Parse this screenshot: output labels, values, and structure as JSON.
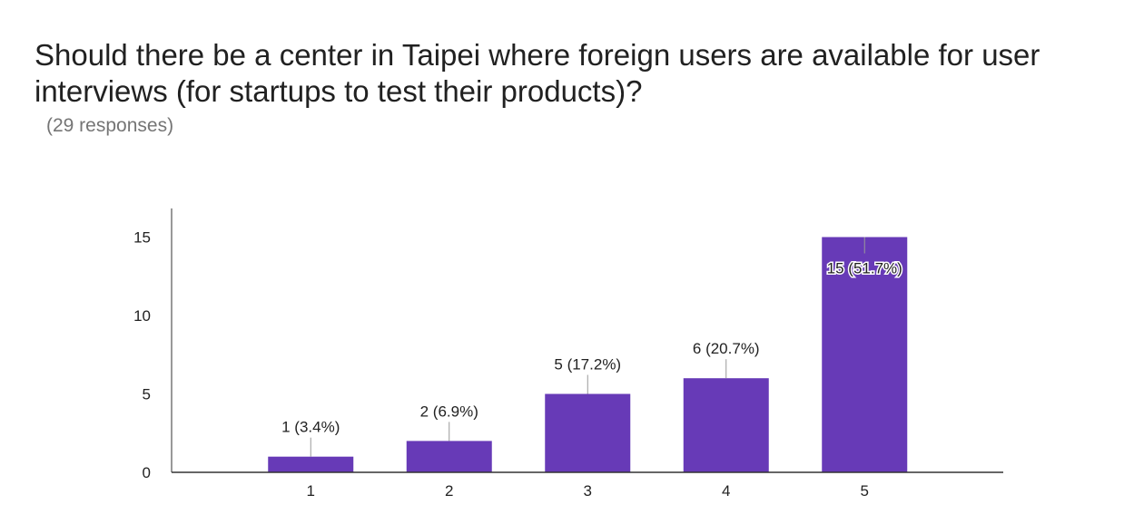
{
  "title": "Should there be a center in Taipei where foreign users are available for user interviews (for startups to test their products)?",
  "subtitle": "(29 responses)",
  "colors": {
    "bar": "#673ab7",
    "axis": "#333333",
    "leader": "#999999",
    "label_text": "#222222"
  },
  "chart_data": {
    "type": "bar",
    "categories": [
      "1",
      "2",
      "3",
      "4",
      "5"
    ],
    "values": [
      1,
      2,
      5,
      6,
      15
    ],
    "data_labels": [
      "1 (3.4%)",
      "2 (6.9%)",
      "5 (17.2%)",
      "6 (20.7%)",
      "15 (51.7%)"
    ],
    "xlabel": "",
    "ylabel": "",
    "ylim": [
      0,
      17
    ],
    "yticks": [
      0,
      5,
      10,
      15
    ],
    "grid": false,
    "legend": "none"
  }
}
